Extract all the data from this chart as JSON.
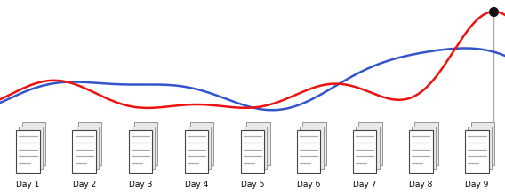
{
  "days": [
    "Day 1",
    "Day 2",
    "Day 3",
    "Day 4",
    "Day 5",
    "Day 6",
    "Day 7",
    "Day 8",
    "Day 9"
  ],
  "n_days": 9,
  "red_color": "#ee1111",
  "blue_color": "#3355cc",
  "dot_color": "#111111",
  "line_color": "#aaaaaa",
  "doc_border_color": "#444444",
  "doc_fill_color": "#ffffff",
  "doc_line_color": "#aaaaaa",
  "fig_width": 5.68,
  "fig_height": 2.18
}
